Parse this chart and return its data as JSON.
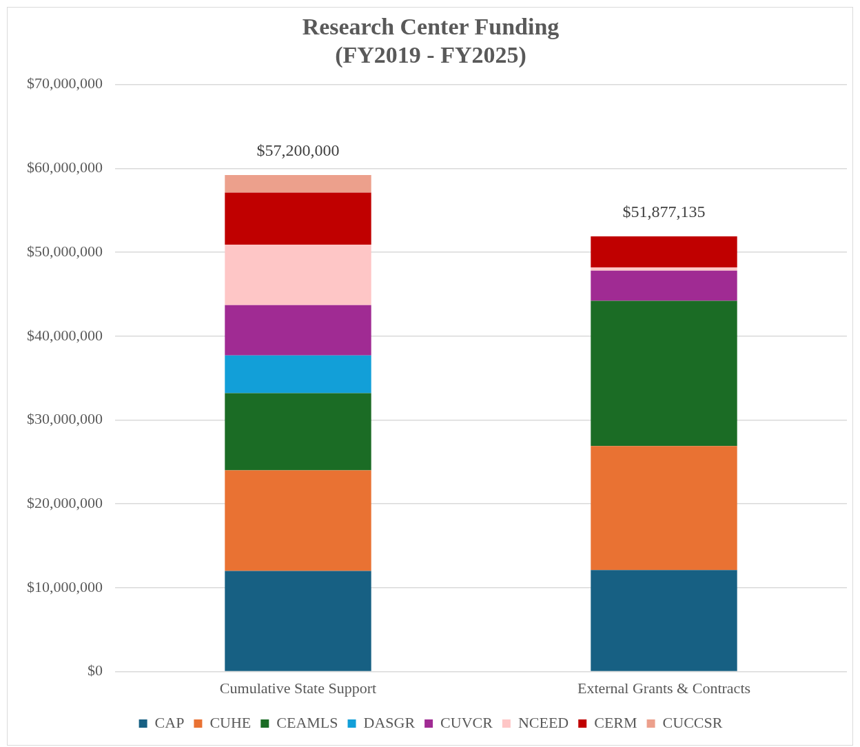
{
  "chart_data": {
    "type": "bar",
    "title": "Research Center Funding\n(FY2019 - FY2025)",
    "categories": [
      "Cumulative State Support",
      "External Grants & Contracts"
    ],
    "stacked": true,
    "series": [
      {
        "name": "CAP",
        "color": "#176083",
        "values": [
          12000000.0,
          12100000.0
        ]
      },
      {
        "name": "CUHE",
        "color": "#e97233",
        "values": [
          12000000.0,
          14800000.0
        ]
      },
      {
        "name": "CEAMLS",
        "color": "#1b6c25",
        "values": [
          9200000.0,
          17300000.0
        ]
      },
      {
        "name": "DASGR",
        "color": "#129fd8",
        "values": [
          4500000.0,
          0
        ]
      },
      {
        "name": "CUVCR",
        "color": "#a02b93",
        "values": [
          6000000.0,
          3600000.0
        ]
      },
      {
        "name": "NCEED",
        "color": "#fec6c6",
        "values": [
          7200000.0,
          400000.0
        ]
      },
      {
        "name": "CERM",
        "color": "#c00000",
        "values": [
          6200000.0,
          3700000.0
        ]
      },
      {
        "name": "CUCCSR",
        "color": "#eca08c",
        "values": [
          2100000.0,
          0
        ]
      }
    ],
    "annotations": [
      {
        "text": "$57,200,000",
        "x": "Cumulative State Support",
        "y": 59200000
      },
      {
        "text": "$51,877,135",
        "x": "External Grants & Contracts",
        "y": 51900000
      }
    ],
    "ylim": [
      0,
      70000000
    ],
    "yticks": [
      {
        "value": 0,
        "label": "$0"
      },
      {
        "value": 10000000,
        "label": "$10,000,000"
      },
      {
        "value": 20000000,
        "label": "$20,000,000"
      },
      {
        "value": 30000000,
        "label": "$30,000,000"
      },
      {
        "value": 40000000,
        "label": "$40,000,000"
      },
      {
        "value": 50000000,
        "label": "$50,000,000"
      },
      {
        "value": 60000000,
        "label": "$60,000,000"
      },
      {
        "value": 70000000,
        "label": "$70,000,000"
      }
    ],
    "grid": "y",
    "legend": "bottom"
  }
}
